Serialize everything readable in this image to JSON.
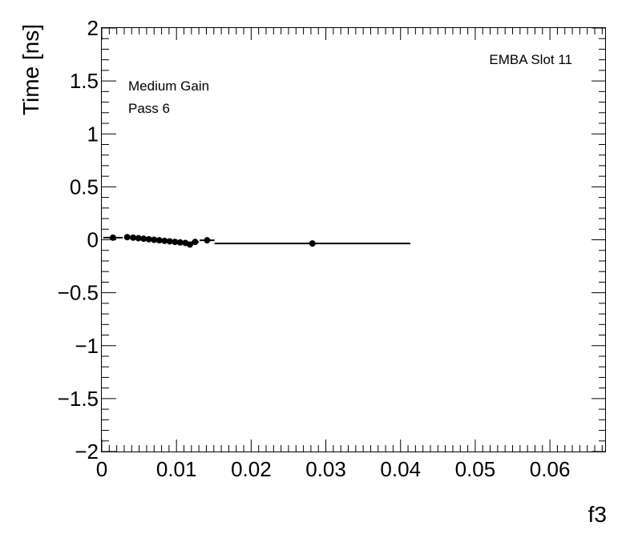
{
  "chart_data": {
    "type": "scatter",
    "title": "",
    "xlabel": "f3",
    "ylabel": "Time [ns]",
    "xlim": [
      0,
      0.0675
    ],
    "ylim": [
      -2,
      2
    ],
    "x_ticks": [
      0,
      0.01,
      0.02,
      0.03,
      0.04,
      0.05,
      0.06
    ],
    "x_tick_labels": [
      "0",
      "0.01",
      "0.02",
      "0.03",
      "0.04",
      "0.05",
      "0.06"
    ],
    "y_ticks": [
      2,
      1.5,
      1,
      0.5,
      0,
      -0.5,
      -1,
      -1.5,
      -2
    ],
    "y_tick_labels": [
      "2",
      "1.5",
      "1",
      "0.5",
      "0",
      "−0.5",
      "−1",
      "−1.5",
      "−2"
    ],
    "annotations": {
      "gain": "Medium Gain",
      "pass": "Pass 6",
      "slot": "EMBA Slot 11"
    },
    "points": [
      {
        "x": 0.0015,
        "y": 0.02,
        "xerr": 0.0013
      },
      {
        "x": 0.0034,
        "y": 0.025,
        "xerr": 0.0003
      },
      {
        "x": 0.0042,
        "y": 0.02,
        "xerr": 0.0003
      },
      {
        "x": 0.0049,
        "y": 0.015,
        "xerr": 0.0003
      },
      {
        "x": 0.0056,
        "y": 0.01,
        "xerr": 0.0003
      },
      {
        "x": 0.0063,
        "y": 0.005,
        "xerr": 0.0003
      },
      {
        "x": 0.007,
        "y": 0.0,
        "xerr": 0.0003
      },
      {
        "x": 0.0077,
        "y": -0.005,
        "xerr": 0.0003
      },
      {
        "x": 0.0084,
        "y": -0.01,
        "xerr": 0.0003
      },
      {
        "x": 0.0091,
        "y": -0.015,
        "xerr": 0.0003
      },
      {
        "x": 0.0098,
        "y": -0.02,
        "xerr": 0.0003
      },
      {
        "x": 0.0105,
        "y": -0.025,
        "xerr": 0.0003
      },
      {
        "x": 0.0112,
        "y": -0.03,
        "xerr": 0.0003
      },
      {
        "x": 0.0118,
        "y": -0.045,
        "xerr": 0.0003
      },
      {
        "x": 0.0125,
        "y": -0.02,
        "xerr": 0.0005
      },
      {
        "x": 0.0141,
        "y": -0.005,
        "xerr": 0.001
      },
      {
        "x": 0.0282,
        "y": -0.035,
        "xerr": 0.0131
      }
    ],
    "grid": false,
    "legend": "none",
    "marker_color": "#000000"
  }
}
